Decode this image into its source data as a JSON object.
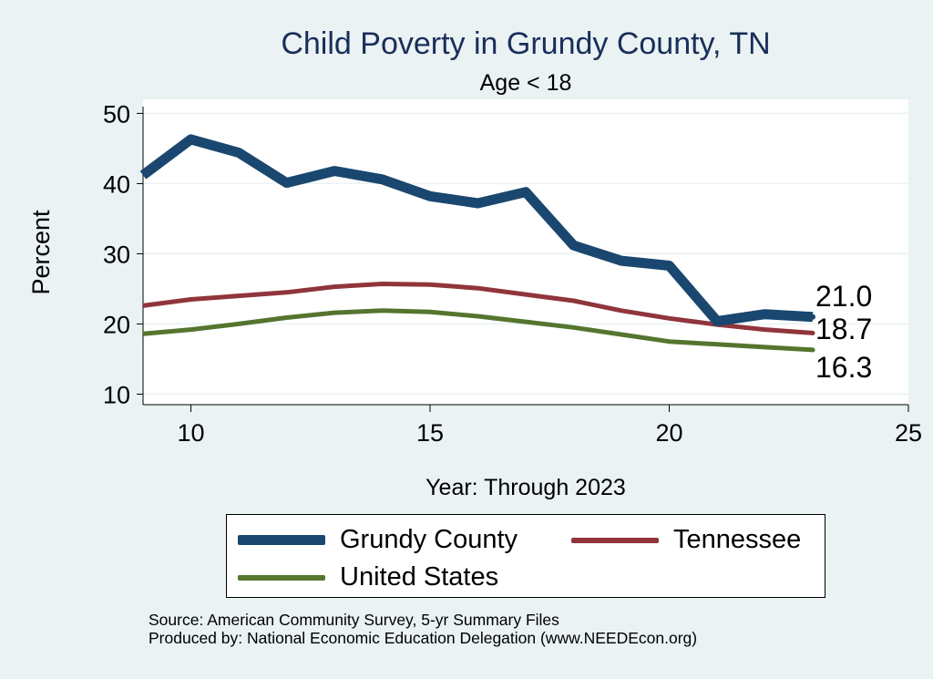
{
  "chart_data": {
    "type": "line",
    "title": "Child Poverty in Grundy County, TN",
    "subtitle": "Age < 18",
    "xlabel": "Year: Through 2023",
    "ylabel": "Percent",
    "xlim": [
      9,
      25
    ],
    "ylim": [
      8.5,
      52
    ],
    "xticks": [
      10,
      15,
      20,
      25
    ],
    "yticks": [
      10,
      20,
      30,
      40,
      50
    ],
    "grid": true,
    "legend_position": "bottom",
    "series": [
      {
        "name": "Grundy County",
        "color": "#1a476f",
        "x": [
          9,
          10,
          11,
          12,
          13,
          14,
          15,
          16,
          17,
          18,
          19,
          20,
          21,
          22,
          23
        ],
        "values": [
          41.2,
          46.3,
          44.4,
          40.1,
          41.8,
          40.6,
          38.2,
          37.2,
          38.8,
          31.2,
          29.0,
          28.3,
          20.4,
          21.4,
          21.0
        ],
        "end_label": "21.0"
      },
      {
        "name": "Tennessee",
        "color": "#90353b",
        "x": [
          9,
          10,
          11,
          12,
          13,
          14,
          15,
          16,
          17,
          18,
          19,
          20,
          21,
          22,
          23
        ],
        "values": [
          22.6,
          23.5,
          24.0,
          24.5,
          25.3,
          25.7,
          25.6,
          25.1,
          24.2,
          23.3,
          21.9,
          20.8,
          19.9,
          19.2,
          18.7
        ],
        "end_label": "18.7"
      },
      {
        "name": "United States",
        "color": "#55752f",
        "x": [
          9,
          10,
          11,
          12,
          13,
          14,
          15,
          16,
          17,
          18,
          19,
          20,
          21,
          22,
          23
        ],
        "values": [
          18.6,
          19.2,
          20.0,
          20.9,
          21.6,
          21.9,
          21.7,
          21.1,
          20.3,
          19.5,
          18.5,
          17.5,
          17.1,
          16.7,
          16.3
        ],
        "end_label": "16.3"
      }
    ]
  },
  "legend": {
    "items": [
      {
        "label": "Grundy County",
        "color": "#1a476f"
      },
      {
        "label": "Tennessee",
        "color": "#90353b"
      },
      {
        "label": "United States",
        "color": "#55752f"
      }
    ]
  },
  "footer": {
    "source": "Source: American Community Survey, 5-yr Summary Files",
    "produced_by": "Produced by: National Economic Education Delegation (www.NEEDEcon.org)"
  }
}
